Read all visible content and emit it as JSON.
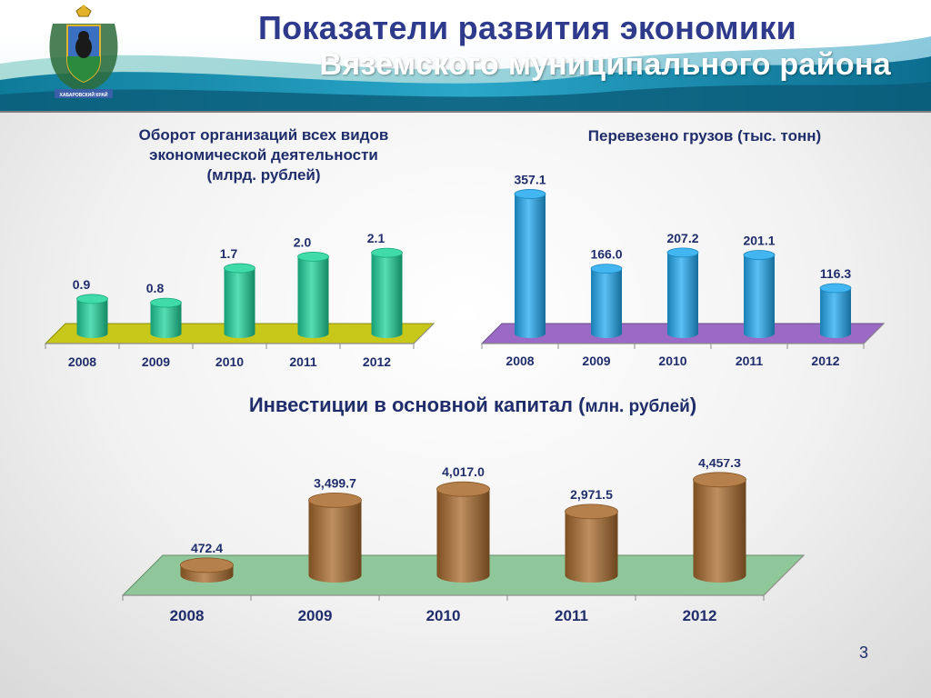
{
  "header": {
    "title_line1": "Показатели развития экономики",
    "title_line2": "Вяземского муниципального района",
    "emblem_caption": "ХАБАРОВСКИЙ КРАЙ"
  },
  "page_number": "3",
  "colors": {
    "turnover_bar": "#1fd39a",
    "turnover_floor": "#c8c81a",
    "cargo_bar": "#22a9f0",
    "cargo_floor": "#9a6ac4",
    "invest_bar": "#a86a2c",
    "invest_floor": "#8fc79a"
  },
  "chart_data": [
    {
      "type": "bar",
      "title": "Оборот организаций всех видов экономической деятельности (млрд. рублей)",
      "title_lines": [
        "Оборот организаций всех видов",
        "экономической деятельности",
        "(млрд. рублей)"
      ],
      "categories": [
        "2008",
        "2009",
        "2010",
        "2011",
        "2012"
      ],
      "values": [
        0.9,
        0.8,
        1.7,
        2.0,
        2.1
      ],
      "value_labels": [
        "0.9",
        "0.8",
        "1.7",
        "2.0",
        "2.1"
      ],
      "ylim": [
        0,
        2.6
      ]
    },
    {
      "type": "bar",
      "title": "Перевезено грузов (тыс. тонн)",
      "title_lines": [
        "Перевезено грузов (тыс. тонн)"
      ],
      "categories": [
        "2008",
        "2009",
        "2010",
        "2011",
        "2012"
      ],
      "values": [
        357.1,
        166.0,
        207.2,
        201.1,
        116.3
      ],
      "value_labels": [
        "357.1",
        "166.0",
        "207.2",
        "201.1",
        "116.3"
      ],
      "ylim": [
        0,
        400
      ]
    },
    {
      "type": "bar",
      "title_main": "Инвестиции в основной капитал (",
      "title_unit": "млн. рублей",
      "title_close": ")",
      "categories": [
        "2008",
        "2009",
        "2010",
        "2011",
        "2012"
      ],
      "values": [
        472.4,
        3499.7,
        4017.0,
        2971.5,
        4457.3
      ],
      "value_labels": [
        "472.4",
        "3,499.7",
        "4,017.0",
        "2,971.5",
        "4,457.3"
      ],
      "ylim": [
        0,
        5000
      ]
    }
  ]
}
